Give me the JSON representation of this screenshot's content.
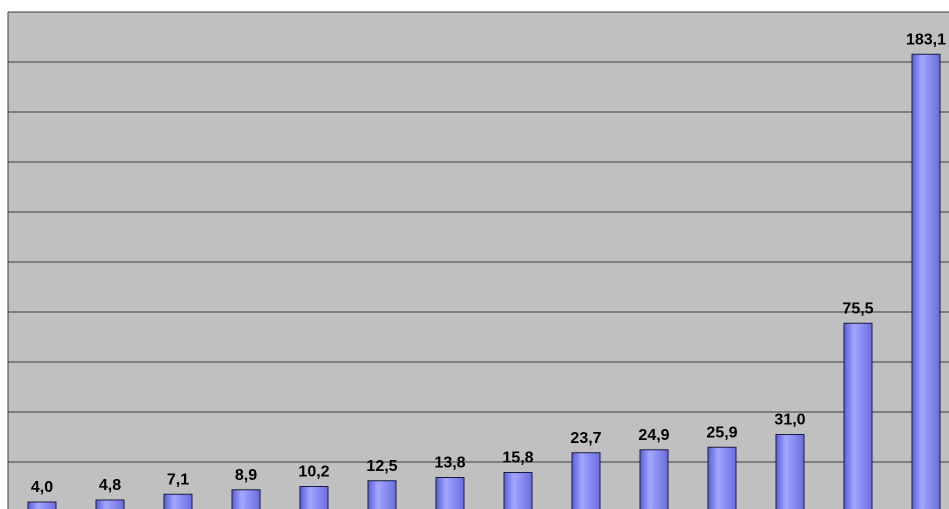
{
  "chart_data": {
    "type": "bar",
    "categories": [
      null,
      null,
      null,
      null,
      null,
      null,
      null,
      null,
      null,
      null,
      null,
      null,
      null,
      null
    ],
    "values": [
      4.0,
      4.8,
      7.1,
      8.9,
      10.2,
      12.5,
      13.8,
      15.8,
      23.7,
      24.9,
      25.9,
      31.0,
      75.5,
      183.1
    ],
    "value_labels": [
      "4,0",
      "4,8",
      "7,1",
      "8,9",
      "10,2",
      "12,5",
      "13,8",
      "15,8",
      "23,7",
      "24,9",
      "25,9",
      "31,0",
      "75,5",
      "183,1"
    ],
    "color": "#8a8cf2",
    "ylim": [
      0,
      200
    ],
    "yticks": [
      0,
      20,
      40,
      60,
      80,
      100,
      120,
      140,
      160,
      180,
      200
    ],
    "grid": true
  }
}
